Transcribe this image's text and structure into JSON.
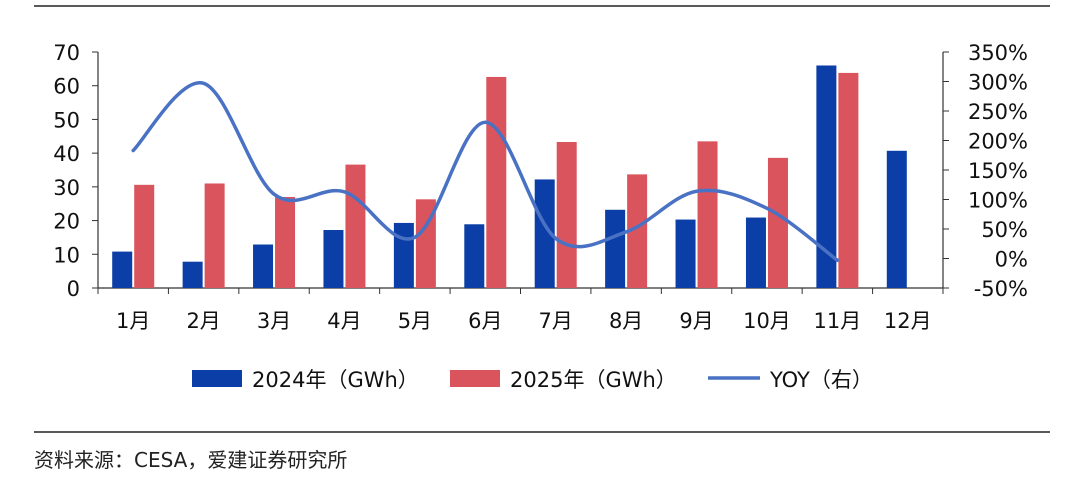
{
  "chart_data": {
    "type": "bar",
    "categories": [
      "1月",
      "2月",
      "3月",
      "4月",
      "5月",
      "6月",
      "7月",
      "8月",
      "9月",
      "10月",
      "11月",
      "12月"
    ],
    "series": [
      {
        "name": "2024年（GWh）",
        "kind": "bar",
        "axis": "left",
        "color": "#0b3ea6",
        "values": [
          10.8,
          7.8,
          12.9,
          17.2,
          19.3,
          18.9,
          32.2,
          23.2,
          20.3,
          20.9,
          66.0,
          40.7
        ]
      },
      {
        "name": "2025年（GWh）",
        "kind": "bar",
        "axis": "left",
        "color": "#d9545c",
        "values": [
          30.6,
          31.0,
          27.0,
          36.6,
          26.3,
          62.6,
          43.3,
          33.7,
          43.5,
          38.6,
          63.8,
          null
        ]
      },
      {
        "name": "YOY（右）",
        "kind": "line",
        "axis": "right",
        "color": "#4a72c4",
        "values": [
          1.83,
          2.97,
          1.09,
          1.13,
          0.36,
          2.31,
          0.34,
          0.45,
          1.14,
          0.85,
          -0.03,
          null
        ]
      }
    ],
    "y_left": {
      "min": 0,
      "max": 70,
      "ticks": [
        "0",
        "10",
        "20",
        "30",
        "40",
        "50",
        "60",
        "70"
      ]
    },
    "y_right": {
      "min": -0.5,
      "max": 3.5,
      "ticks": [
        "-50%",
        "0%",
        "50%",
        "100%",
        "150%",
        "200%",
        "250%",
        "300%",
        "350%"
      ]
    },
    "title": "",
    "xlabel": "",
    "ylabel": ""
  },
  "source": "资料来源：CESA，爱建证券研究所"
}
